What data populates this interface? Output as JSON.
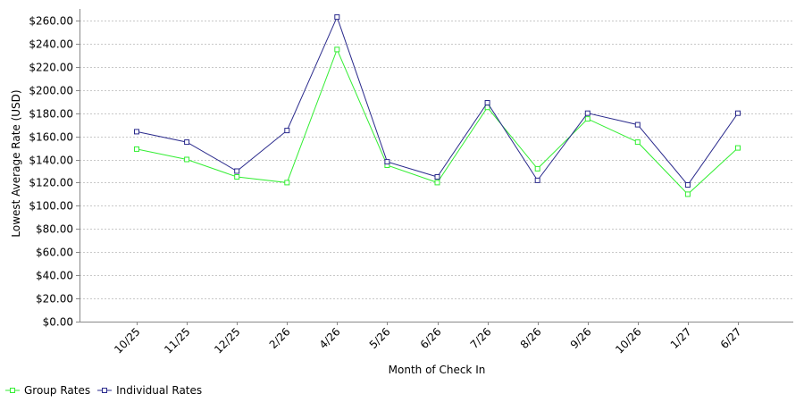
{
  "chart_data": {
    "type": "line",
    "xlabel": "Month of Check In",
    "ylabel": "Lowest Average Rate (USD)",
    "categories": [
      "10/25",
      "11/25",
      "12/25",
      "2/26",
      "4/26",
      "5/26",
      "6/26",
      "7/26",
      "8/26",
      "9/26",
      "10/26",
      "1/27",
      "6/27"
    ],
    "ylim": [
      0,
      270
    ],
    "yticks": [
      0,
      20,
      40,
      60,
      80,
      100,
      120,
      140,
      160,
      180,
      200,
      220,
      240,
      260
    ],
    "ytick_labels": [
      "$0.00",
      "$20.00",
      "$40.00",
      "$60.00",
      "$80.00",
      "$100.00",
      "$120.00",
      "$140.00",
      "$160.00",
      "$180.00",
      "$200.00",
      "$220.00",
      "$240.00",
      "$260.00"
    ],
    "grid": true,
    "legend_position": "bottom-left",
    "series": [
      {
        "name": "Group Rates",
        "color": "#33ee33",
        "values": [
          149,
          140,
          125,
          120,
          235,
          135,
          120,
          185,
          132,
          175,
          155,
          110,
          150
        ]
      },
      {
        "name": "Individual Rates",
        "color": "#2a2a8c",
        "values": [
          164,
          155,
          130,
          165,
          263,
          138,
          125,
          189,
          122,
          180,
          170,
          118,
          180
        ]
      }
    ]
  }
}
